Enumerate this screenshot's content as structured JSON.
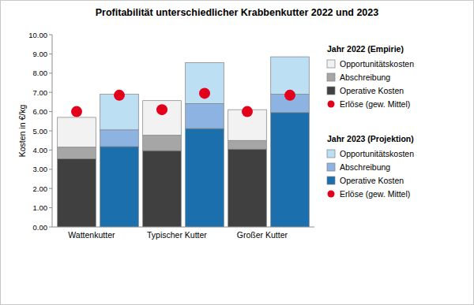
{
  "chart_data": {
    "type": "bar",
    "stacked": true,
    "grid": false,
    "legend": "right",
    "title": "Profitabilität unterschiedlicher Krabbenkutter 2022 und 2023",
    "y_label": "Kosten in €/kg",
    "legend_titles": [
      "Jahr 2022 (Empirie)",
      "Jahr 2023 (Projektion)"
    ],
    "categories": [
      "Wattenkutter",
      null,
      "Typischer Kutter",
      null,
      "Großer Kutter",
      null
    ],
    "ylim": [
      0,
      10
    ],
    "yticks": [
      {
        "value": 0,
        "label": "0.00"
      },
      {
        "value": 1,
        "label": "1.00"
      },
      {
        "value": 2,
        "label": "2.00"
      },
      {
        "value": 3,
        "label": "3.00"
      },
      {
        "value": 4,
        "label": "4.00"
      },
      {
        "value": 5,
        "label": "5.00"
      },
      {
        "value": 6,
        "label": "6.00"
      },
      {
        "value": 7,
        "label": "7.00"
      },
      {
        "value": 8,
        "label": "8.00"
      },
      {
        "value": 9,
        "label": "9.00"
      },
      {
        "value": 10,
        "label": "10.00"
      }
    ],
    "series": [
      {
        "name": "Opportunitätskosten",
        "type": "bar",
        "color": "#f2f2f2",
        "values": [
          1.55,
          null,
          1.8,
          null,
          1.6,
          null
        ]
      },
      {
        "name": "Abschreibung",
        "type": "bar",
        "color": "#a6a6a6",
        "values": [
          0.6,
          null,
          0.8,
          null,
          0.45,
          null
        ]
      },
      {
        "name": "Operative Kosten",
        "type": "bar",
        "color": "#404040",
        "values": [
          3.55,
          null,
          3.97,
          null,
          4.05,
          null
        ]
      },
      {
        "name": "Erlöse (gew. Mittel)",
        "type": "scatter",
        "marker": "circle",
        "color": "#e3001b",
        "values": [
          6.0,
          null,
          6.1,
          null,
          6.0,
          null
        ]
      },
      {
        "name": "Opportunitätskosten",
        "type": "bar",
        "color": "#bcdff4",
        "values": [
          null,
          1.85,
          null,
          2.13,
          null,
          1.95
        ]
      },
      {
        "name": "Abschreibung",
        "type": "bar",
        "color": "#8db3e2",
        "values": [
          null,
          0.87,
          null,
          1.3,
          null,
          0.95
        ]
      },
      {
        "name": "Operative Kosten",
        "type": "bar",
        "color": "#1b6fad",
        "values": [
          null,
          4.18,
          null,
          5.12,
          null,
          5.95
        ]
      },
      {
        "name": "Erlöse (gew. Mittel)",
        "type": "scatter",
        "marker": "circle",
        "color": "#e3001b",
        "values": [
          null,
          6.85,
          null,
          6.95,
          null,
          6.85
        ]
      }
    ]
  }
}
